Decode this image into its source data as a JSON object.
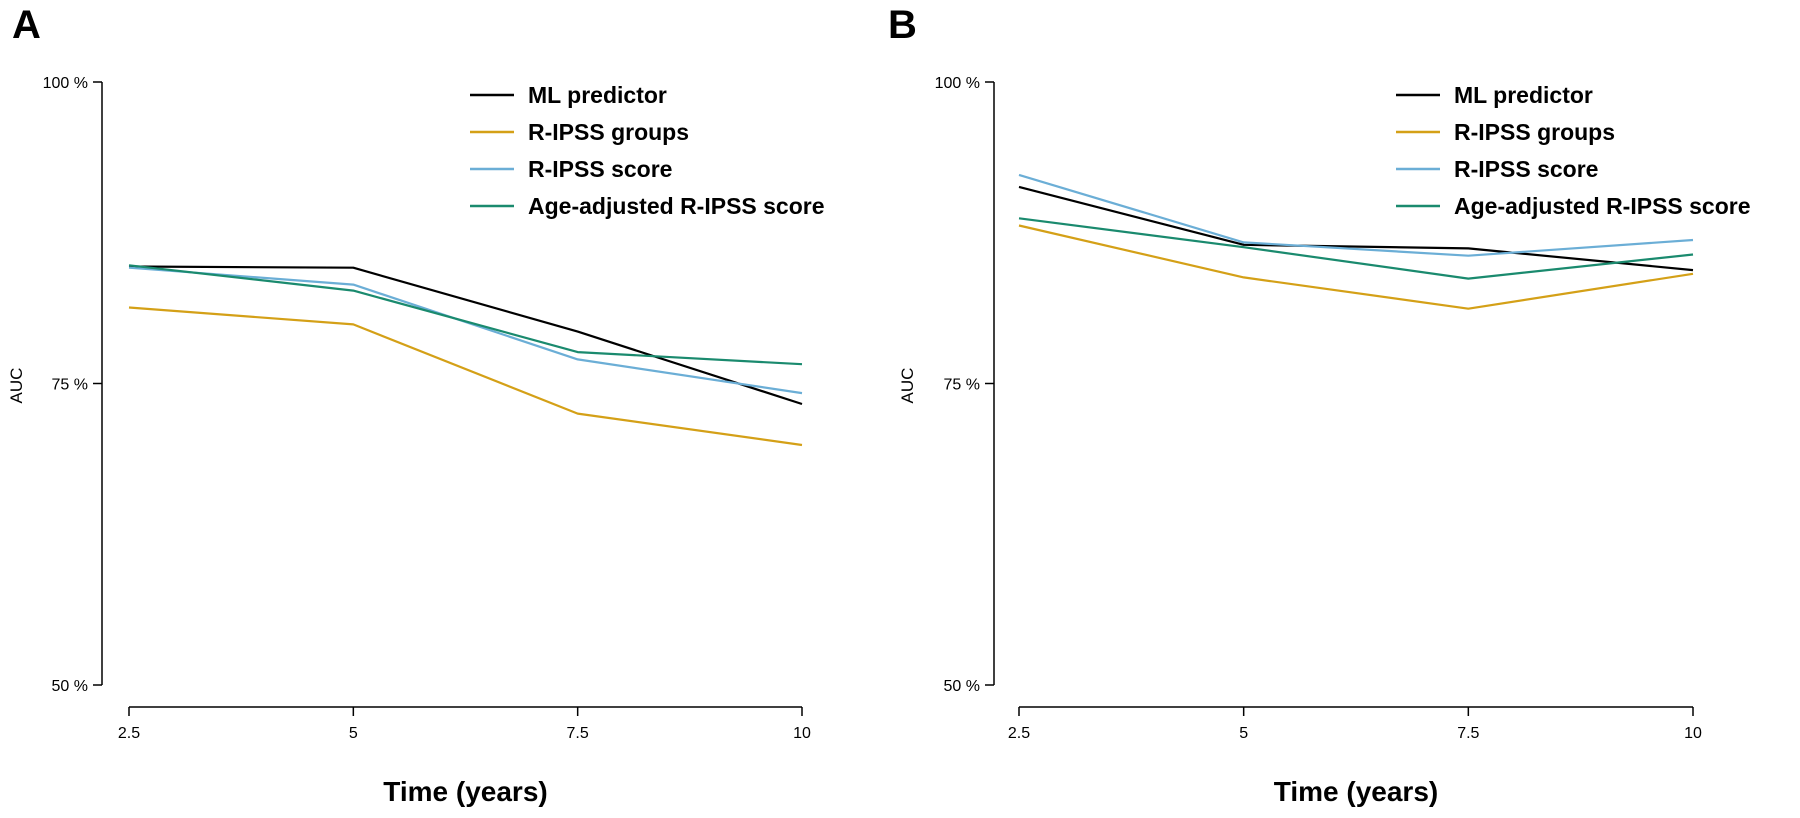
{
  "chart_data": [
    {
      "type": "line",
      "panel": "A",
      "x": [
        2.5,
        5,
        7.5,
        10
      ],
      "xticks": [
        "2.5",
        "5",
        "7.5",
        "10"
      ],
      "yticks": [
        "50 %",
        "75 %",
        "100 %"
      ],
      "xlabel": "Time (years)",
      "ylabel": "AUC",
      "ylim": [
        50,
        100
      ],
      "legend_position": "top-right",
      "series": [
        {
          "name": "ML predictor",
          "color": "#000000",
          "values": [
            84.7,
            84.6,
            79.3,
            73.3
          ]
        },
        {
          "name": "R-IPSS groups",
          "color": "#D4A017",
          "values": [
            81.3,
            79.9,
            72.5,
            69.9
          ]
        },
        {
          "name": "R-IPSS score",
          "color": "#6BAED6",
          "values": [
            84.6,
            83.2,
            77.0,
            74.2
          ]
        },
        {
          "name": "Age-adjusted R-IPSS score",
          "color": "#1A8A6E",
          "values": [
            84.8,
            82.7,
            77.6,
            76.6
          ]
        }
      ]
    },
    {
      "type": "line",
      "panel": "B",
      "x": [
        2.5,
        5,
        7.5,
        10
      ],
      "xticks": [
        "2.5",
        "5",
        "7.5",
        "10"
      ],
      "yticks": [
        "50 %",
        "75 %",
        "100 %"
      ],
      "xlabel": "Time (years)",
      "ylabel": "AUC",
      "ylim": [
        50,
        100
      ],
      "legend_position": "top-right",
      "series": [
        {
          "name": "ML predictor",
          "color": "#000000",
          "values": [
            91.3,
            86.5,
            86.2,
            84.4
          ]
        },
        {
          "name": "R-IPSS groups",
          "color": "#D4A017",
          "values": [
            88.1,
            83.8,
            81.2,
            84.1
          ]
        },
        {
          "name": "R-IPSS score",
          "color": "#6BAED6",
          "values": [
            92.3,
            86.7,
            85.6,
            86.9
          ]
        },
        {
          "name": "Age-adjusted R-IPSS score",
          "color": "#1A8A6E",
          "values": [
            88.7,
            86.3,
            83.7,
            85.7
          ]
        }
      ]
    }
  ]
}
